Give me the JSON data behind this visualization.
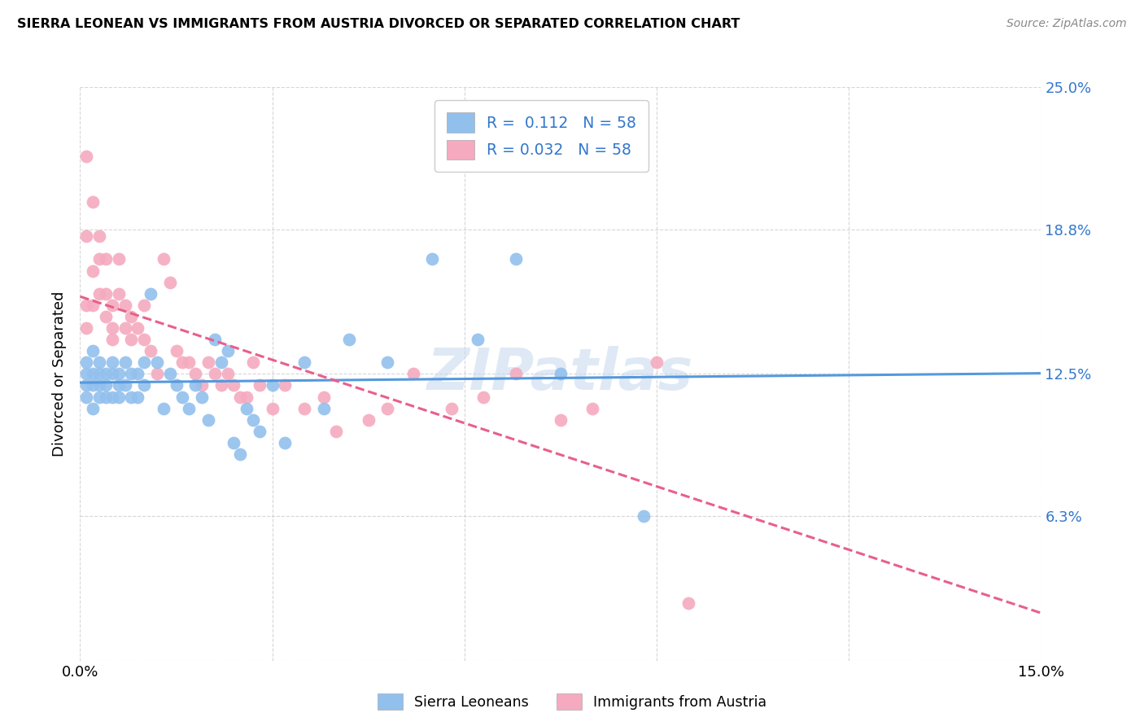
{
  "title": "SIERRA LEONEAN VS IMMIGRANTS FROM AUSTRIA DIVORCED OR SEPARATED CORRELATION CHART",
  "source": "Source: ZipAtlas.com",
  "ylabel": "Divorced or Separated",
  "xlim": [
    0.0,
    0.15
  ],
  "ylim": [
    0.0,
    0.25
  ],
  "ytick_positions": [
    0.0,
    0.063,
    0.125,
    0.188,
    0.25
  ],
  "ytick_labels": [
    "",
    "6.3%",
    "12.5%",
    "18.8%",
    "25.0%"
  ],
  "xtick_positions": [
    0.0,
    0.03,
    0.06,
    0.09,
    0.12,
    0.15
  ],
  "xtick_labels": [
    "0.0%",
    "",
    "",
    "",
    "",
    "15.0%"
  ],
  "grid_color": "#cccccc",
  "background_color": "#ffffff",
  "blue_color": "#92C0ED",
  "pink_color": "#F5AABF",
  "blue_line_color": "#5599DD",
  "pink_line_color": "#E8608A",
  "R_blue": 0.112,
  "R_pink": 0.032,
  "N_blue": 58,
  "N_pink": 58,
  "legend_label_blue": "Sierra Leoneans",
  "legend_label_pink": "Immigrants from Austria",
  "watermark": "ZIPatlas",
  "blue_scatter_x": [
    0.001,
    0.001,
    0.001,
    0.001,
    0.002,
    0.002,
    0.002,
    0.002,
    0.003,
    0.003,
    0.003,
    0.003,
    0.004,
    0.004,
    0.004,
    0.005,
    0.005,
    0.005,
    0.006,
    0.006,
    0.006,
    0.007,
    0.007,
    0.008,
    0.008,
    0.009,
    0.009,
    0.01,
    0.01,
    0.011,
    0.012,
    0.013,
    0.014,
    0.015,
    0.016,
    0.017,
    0.018,
    0.019,
    0.02,
    0.021,
    0.022,
    0.023,
    0.024,
    0.025,
    0.026,
    0.027,
    0.028,
    0.03,
    0.032,
    0.035,
    0.038,
    0.042,
    0.048,
    0.055,
    0.062,
    0.068,
    0.075,
    0.088
  ],
  "blue_scatter_y": [
    0.13,
    0.125,
    0.12,
    0.115,
    0.135,
    0.125,
    0.12,
    0.11,
    0.13,
    0.125,
    0.12,
    0.115,
    0.125,
    0.12,
    0.115,
    0.13,
    0.125,
    0.115,
    0.125,
    0.12,
    0.115,
    0.13,
    0.12,
    0.125,
    0.115,
    0.125,
    0.115,
    0.13,
    0.12,
    0.16,
    0.13,
    0.11,
    0.125,
    0.12,
    0.115,
    0.11,
    0.12,
    0.115,
    0.105,
    0.14,
    0.13,
    0.135,
    0.095,
    0.09,
    0.11,
    0.105,
    0.1,
    0.12,
    0.095,
    0.13,
    0.11,
    0.14,
    0.13,
    0.175,
    0.14,
    0.175,
    0.125,
    0.063
  ],
  "pink_scatter_x": [
    0.001,
    0.001,
    0.001,
    0.001,
    0.002,
    0.002,
    0.002,
    0.003,
    0.003,
    0.003,
    0.004,
    0.004,
    0.004,
    0.005,
    0.005,
    0.005,
    0.006,
    0.006,
    0.007,
    0.007,
    0.008,
    0.008,
    0.009,
    0.01,
    0.01,
    0.011,
    0.012,
    0.013,
    0.014,
    0.015,
    0.016,
    0.017,
    0.018,
    0.019,
    0.02,
    0.021,
    0.022,
    0.023,
    0.024,
    0.025,
    0.026,
    0.027,
    0.028,
    0.03,
    0.032,
    0.035,
    0.038,
    0.04,
    0.045,
    0.048,
    0.052,
    0.058,
    0.063,
    0.068,
    0.075,
    0.08,
    0.09,
    0.095
  ],
  "pink_scatter_y": [
    0.22,
    0.185,
    0.155,
    0.145,
    0.2,
    0.17,
    0.155,
    0.185,
    0.175,
    0.16,
    0.175,
    0.16,
    0.15,
    0.155,
    0.145,
    0.14,
    0.175,
    0.16,
    0.155,
    0.145,
    0.15,
    0.14,
    0.145,
    0.155,
    0.14,
    0.135,
    0.125,
    0.175,
    0.165,
    0.135,
    0.13,
    0.13,
    0.125,
    0.12,
    0.13,
    0.125,
    0.12,
    0.125,
    0.12,
    0.115,
    0.115,
    0.13,
    0.12,
    0.11,
    0.12,
    0.11,
    0.115,
    0.1,
    0.105,
    0.11,
    0.125,
    0.11,
    0.115,
    0.125,
    0.105,
    0.11,
    0.13,
    0.025
  ]
}
